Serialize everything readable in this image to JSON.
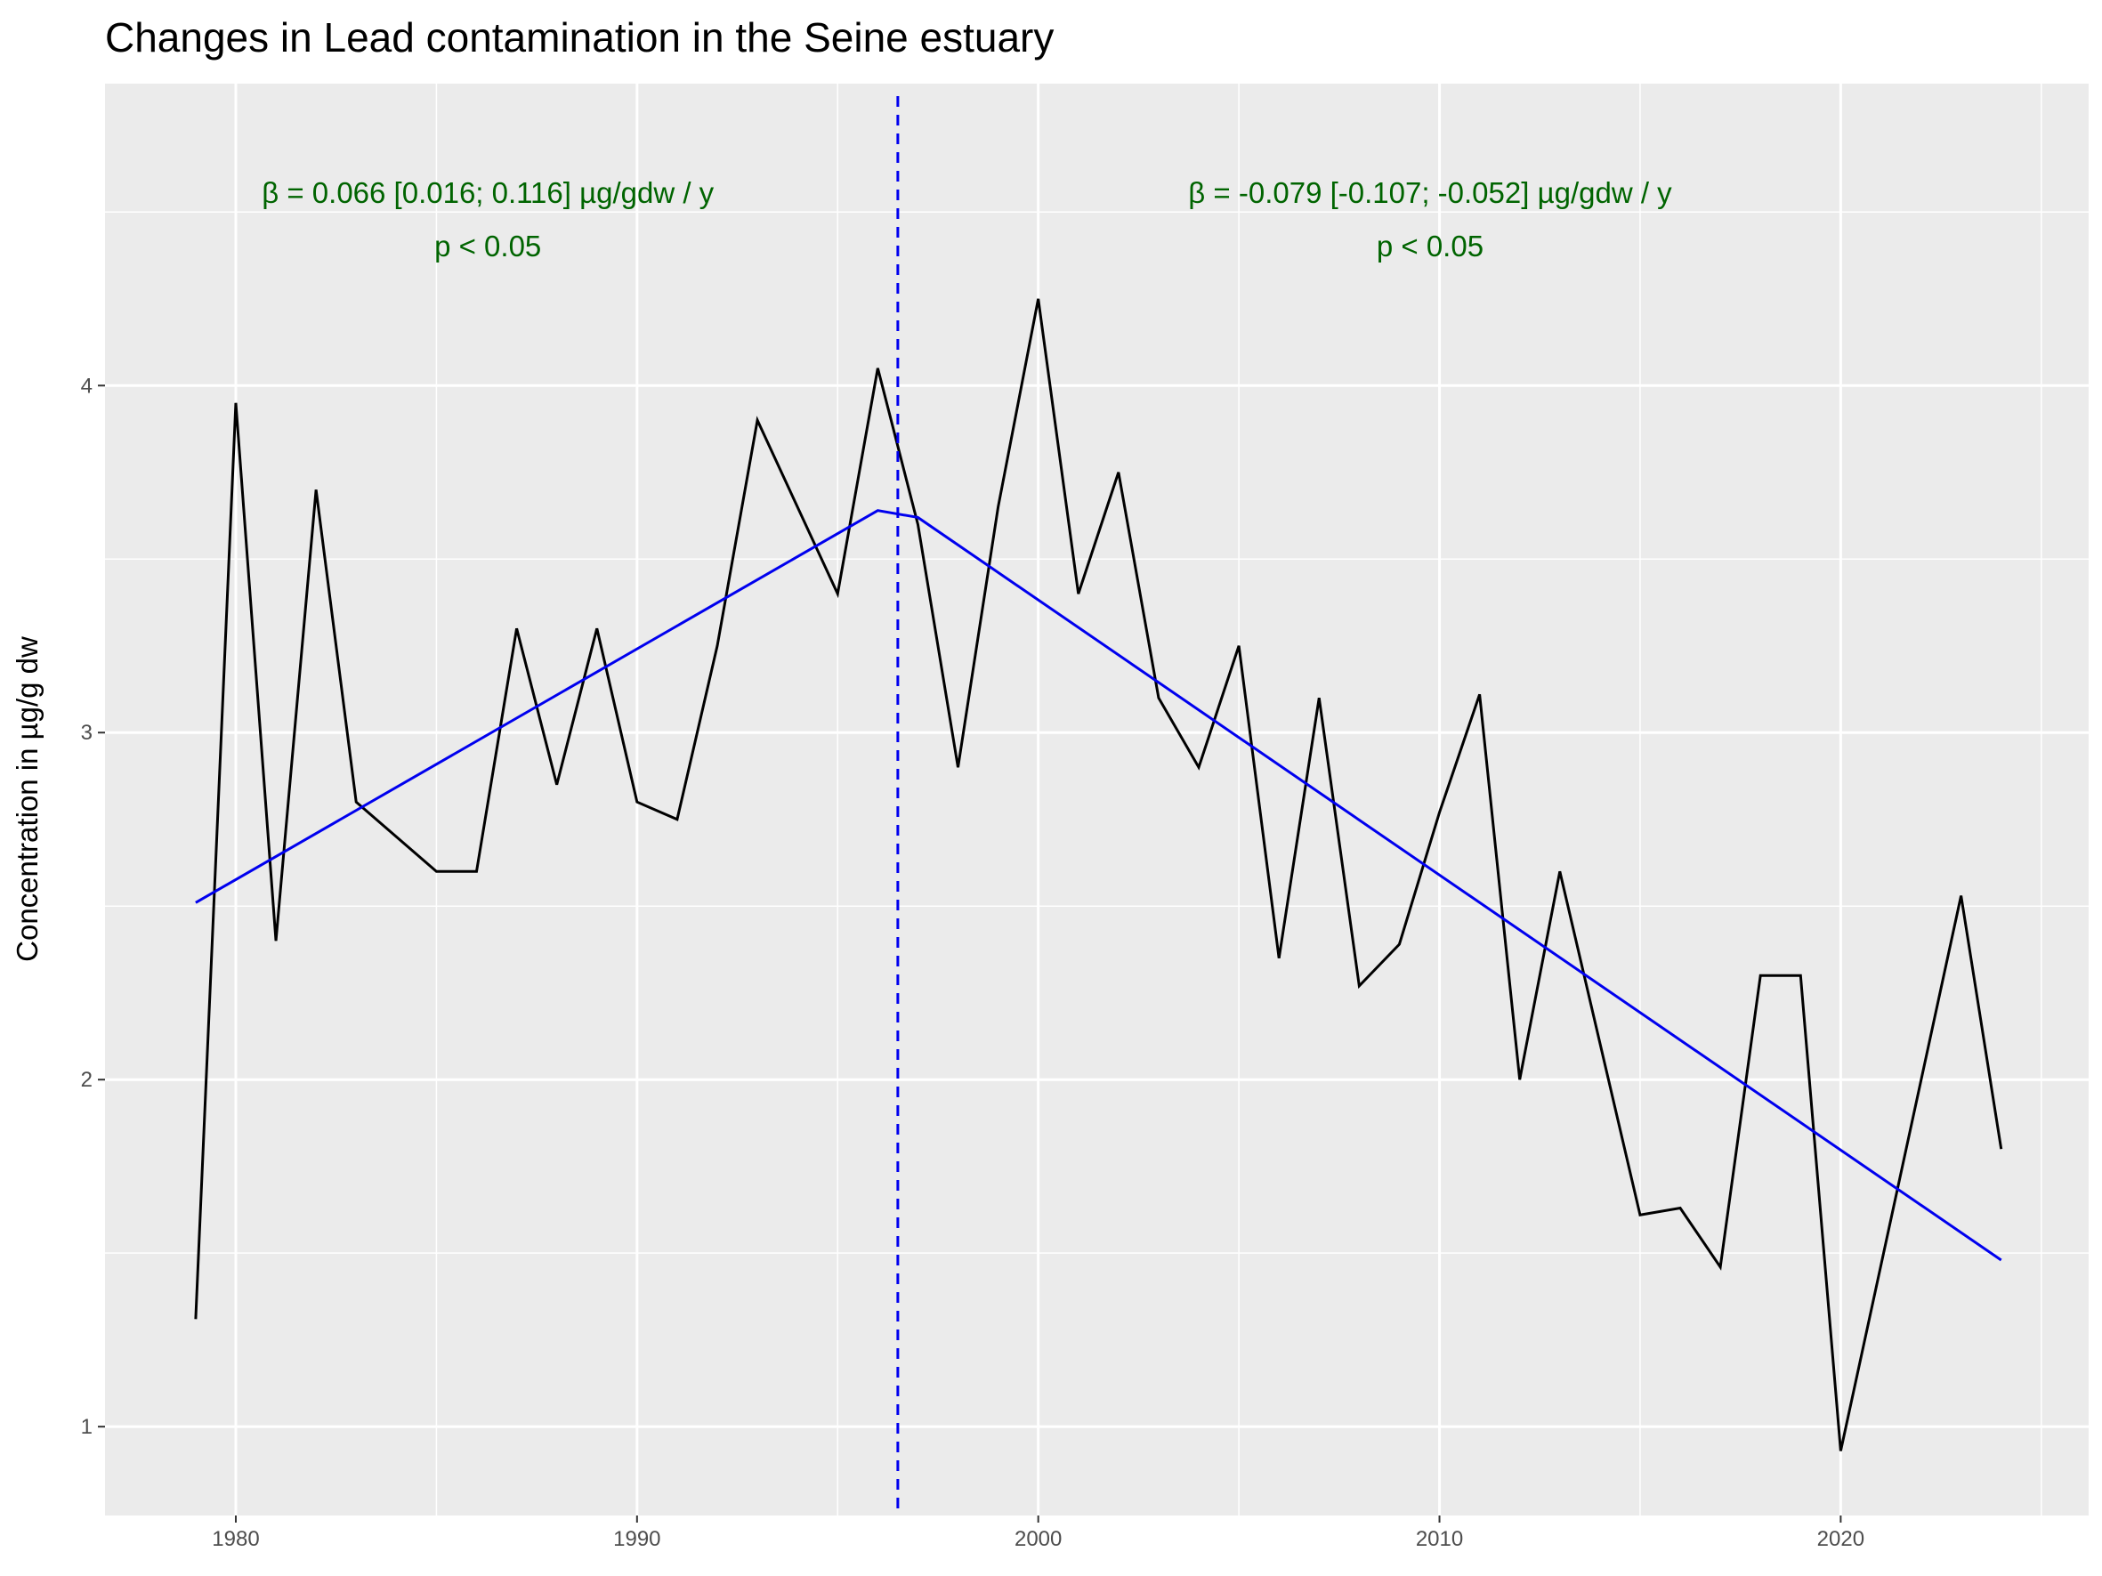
{
  "chart_data": {
    "type": "line",
    "title": "Changes in Lead contamination in the Seine estuary",
    "y_label": "Concentration in µg/g dw",
    "x": [
      1979,
      1980,
      1981,
      1982,
      1983,
      1985,
      1986,
      1987,
      1988,
      1989,
      1990,
      1991,
      1992,
      1993,
      1995,
      1996,
      1997,
      1998,
      1999,
      2000,
      2001,
      2002,
      2003,
      2004,
      2005,
      2006,
      2007,
      2008,
      2009,
      2010,
      2011,
      2012,
      2013,
      2015,
      2016,
      2017,
      2018,
      2019,
      2020,
      2023,
      2024
    ],
    "values": [
      1.31,
      3.95,
      2.4,
      3.7,
      2.8,
      2.6,
      2.6,
      3.3,
      2.85,
      3.3,
      2.8,
      2.75,
      3.25,
      3.9,
      3.4,
      4.05,
      3.6,
      2.9,
      3.65,
      4.25,
      3.4,
      3.75,
      3.1,
      2.9,
      3.25,
      2.35,
      3.1,
      2.27,
      2.39,
      2.77,
      3.11,
      2.0,
      2.6,
      1.61,
      1.63,
      1.46,
      2.3,
      2.3,
      0.93,
      2.53,
      1.8
    ],
    "color": "#000000",
    "trend": {
      "x": [
        1979,
        1996,
        1997,
        2024
      ],
      "values": [
        2.51,
        3.64,
        3.62,
        1.48
      ],
      "color": "#0000ee"
    },
    "breakpoint": 1996.5,
    "annotations": [
      {
        "text": "β = 0.066 [0.016; 0.116] µg/gdw / y",
        "subtext": "p < 0.05",
        "color": "#006400"
      },
      {
        "text": "β = -0.079 [-0.107; -0.052] µg/gdw / y",
        "subtext": "p < 0.05",
        "color": "#006400"
      }
    ],
    "xlim": [
      1976.74,
      2026.18
    ],
    "xticks": [
      1980,
      1990,
      2000,
      2010,
      2020
    ],
    "ylim": [
      0.744,
      4.87
    ],
    "yticks": [
      1,
      2,
      3,
      4
    ],
    "grid": true
  }
}
